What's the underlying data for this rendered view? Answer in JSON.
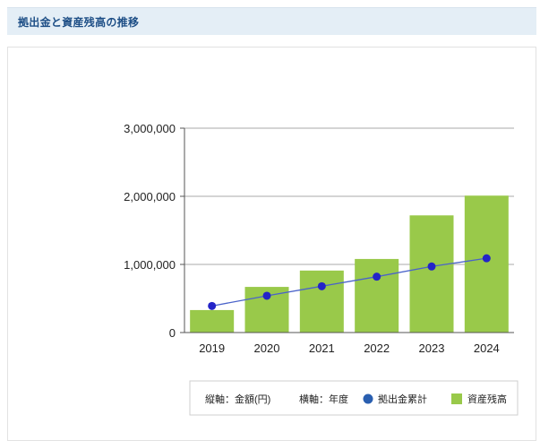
{
  "header": {
    "title": "拠出金と資産残高の推移"
  },
  "chart_data": {
    "type": "bar",
    "categories": [
      "2019",
      "2020",
      "2021",
      "2022",
      "2023",
      "2024"
    ],
    "series": [
      {
        "name": "資産残高",
        "kind": "bar",
        "color": "#99c94a",
        "values": [
          330000,
          670000,
          910000,
          1080000,
          1720000,
          2010000
        ]
      },
      {
        "name": "拠出金累計",
        "kind": "line",
        "color": "#2424c8",
        "values": [
          390000,
          540000,
          680000,
          820000,
          970000,
          1090000
        ]
      }
    ],
    "y_ticks": [
      "0",
      "1,000,000",
      "2,000,000",
      "3,000,000"
    ],
    "ylim": [
      0,
      3000000
    ],
    "grid": true,
    "legend": {
      "position": "bottom-right",
      "axis_note_y": "縦軸：金額(円)",
      "axis_note_x": "横軸：年度"
    }
  }
}
